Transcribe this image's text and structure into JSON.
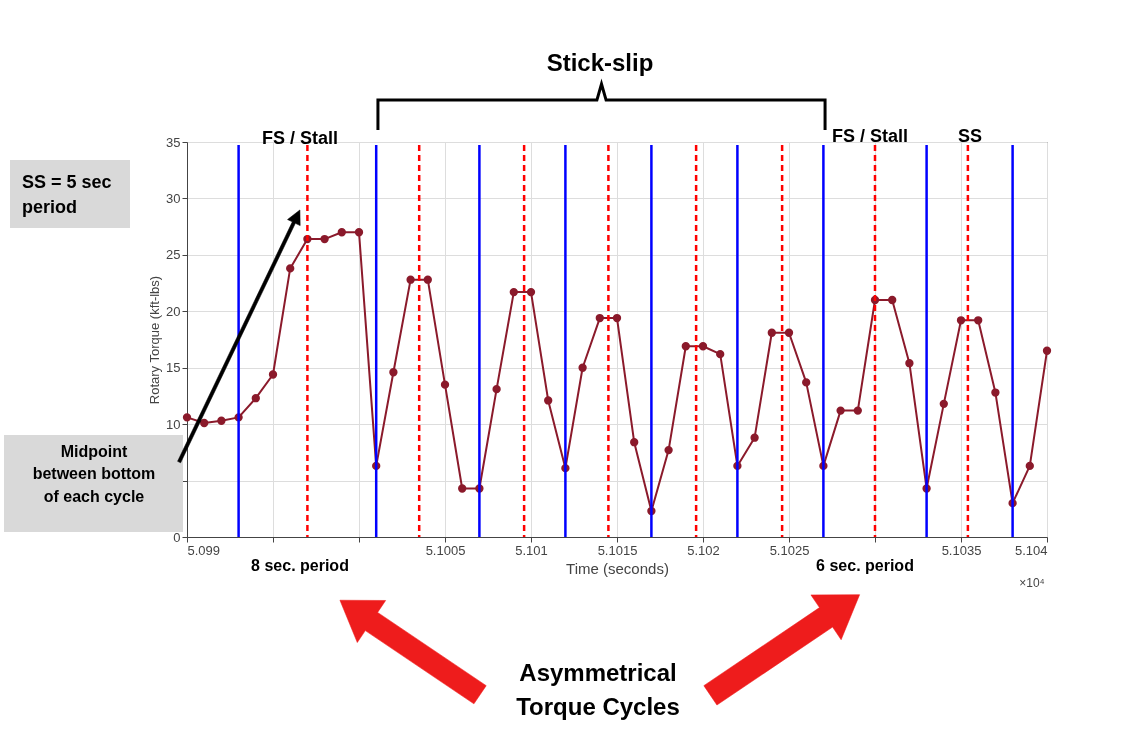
{
  "chart_data": {
    "type": "line",
    "xlabel": "Time (seconds)",
    "ylabel": "Rotary Torque (kft-lbs)",
    "x": [
      5.099,
      5.0991,
      5.0992,
      5.0993,
      5.0994,
      5.0995,
      5.0996,
      5.0997,
      5.0998,
      5.0999,
      5.1,
      5.1001,
      5.1002,
      5.1003,
      5.1004,
      5.1005,
      5.1006,
      5.1007,
      5.1008,
      5.1009,
      5.101,
      5.1011,
      5.1012,
      5.1013,
      5.1014,
      5.1015,
      5.1016,
      5.1017,
      5.1018,
      5.1019,
      5.102,
      5.1021,
      5.1022,
      5.1023,
      5.1024,
      5.1025,
      5.1026,
      5.1027,
      5.1028,
      5.1029,
      5.103,
      5.1031,
      5.1032,
      5.1033,
      5.1034,
      5.1035,
      5.1036,
      5.1037,
      5.1038,
      5.1039,
      5.104
    ],
    "series": [
      {
        "color": "#8b1a2b",
        "values": [
          10.6,
          10.1,
          10.3,
          10.6,
          12.3,
          14.4,
          23.8,
          26.4,
          26.4,
          27.0,
          27.0,
          6.3,
          14.6,
          22.8,
          22.8,
          13.5,
          4.3,
          4.3,
          13.1,
          21.7,
          21.7,
          12.1,
          6.1,
          15.0,
          19.4,
          19.4,
          8.4,
          2.3,
          7.7,
          16.9,
          16.9,
          16.2,
          6.3,
          8.8,
          18.1,
          18.1,
          13.7,
          6.3,
          11.2,
          11.2,
          21.0,
          21.0,
          15.4,
          4.3,
          11.8,
          19.2,
          19.2,
          12.8,
          3.0,
          6.3,
          16.5
        ]
      }
    ],
    "marker": "circle",
    "line_style": "solid",
    "grid": true,
    "xlim": [
      5.099,
      5.104
    ],
    "xticks": [
      5.099,
      {
        "value": 5.0995,
        "label": null
      },
      {
        "value": 5.1,
        "label": null
      },
      5.1005,
      5.101,
      5.1015,
      5.102,
      5.1025,
      {
        "value": 5.103,
        "label": null
      },
      5.1035,
      5.104
    ],
    "ylim": [
      0,
      35
    ],
    "yticks": [
      0,
      {
        "value": 5,
        "label": null
      },
      10,
      15,
      20,
      25,
      30,
      35
    ],
    "ref_lines": [
      {
        "axis": "x",
        "value": 5.0993,
        "color": "#0000ff",
        "line_style": "solid"
      },
      {
        "axis": "x",
        "value": 5.1001,
        "color": "#0000ff",
        "line_style": "solid"
      },
      {
        "axis": "x",
        "value": 5.1007,
        "color": "#0000ff",
        "line_style": "solid"
      },
      {
        "axis": "x",
        "value": 5.1012,
        "color": "#0000ff",
        "line_style": "solid"
      },
      {
        "axis": "x",
        "value": 5.1017,
        "color": "#0000ff",
        "line_style": "solid"
      },
      {
        "axis": "x",
        "value": 5.1022,
        "color": "#0000ff",
        "line_style": "solid"
      },
      {
        "axis": "x",
        "value": 5.1027,
        "color": "#0000ff",
        "line_style": "solid"
      },
      {
        "axis": "x",
        "value": 5.1033,
        "color": "#0000ff",
        "line_style": "solid"
      },
      {
        "axis": "x",
        "value": 5.1038,
        "color": "#0000ff",
        "line_style": "solid"
      },
      {
        "axis": "x",
        "value": 5.0997,
        "color": "#ff0000",
        "line_style": "dashed"
      },
      {
        "axis": "x",
        "value": 5.10035,
        "color": "#ff0000",
        "line_style": "dashed"
      },
      {
        "axis": "x",
        "value": 5.10096,
        "color": "#ff0000",
        "line_style": "dashed"
      },
      {
        "axis": "x",
        "value": 5.10145,
        "color": "#ff0000",
        "line_style": "dashed"
      },
      {
        "axis": "x",
        "value": 5.10196,
        "color": "#ff0000",
        "line_style": "dashed"
      },
      {
        "axis": "x",
        "value": 5.10246,
        "color": "#ff0000",
        "line_style": "dashed"
      },
      {
        "axis": "x",
        "value": 5.103,
        "color": "#ff0000",
        "line_style": "dashed"
      },
      {
        "axis": "x",
        "value": 5.10354,
        "color": "#ff0000",
        "line_style": "dashed"
      }
    ],
    "annotations": [
      "Stick-slip",
      "FS / Stall",
      "FS / Stall",
      "SS",
      "SS = 5 sec\nperiod",
      "Midpoint\nbetween bottom\nof each cycle",
      "8 sec. period",
      "6 sec. period",
      "×10⁴",
      "Asymmetrical\nTorque Cycles"
    ]
  }
}
